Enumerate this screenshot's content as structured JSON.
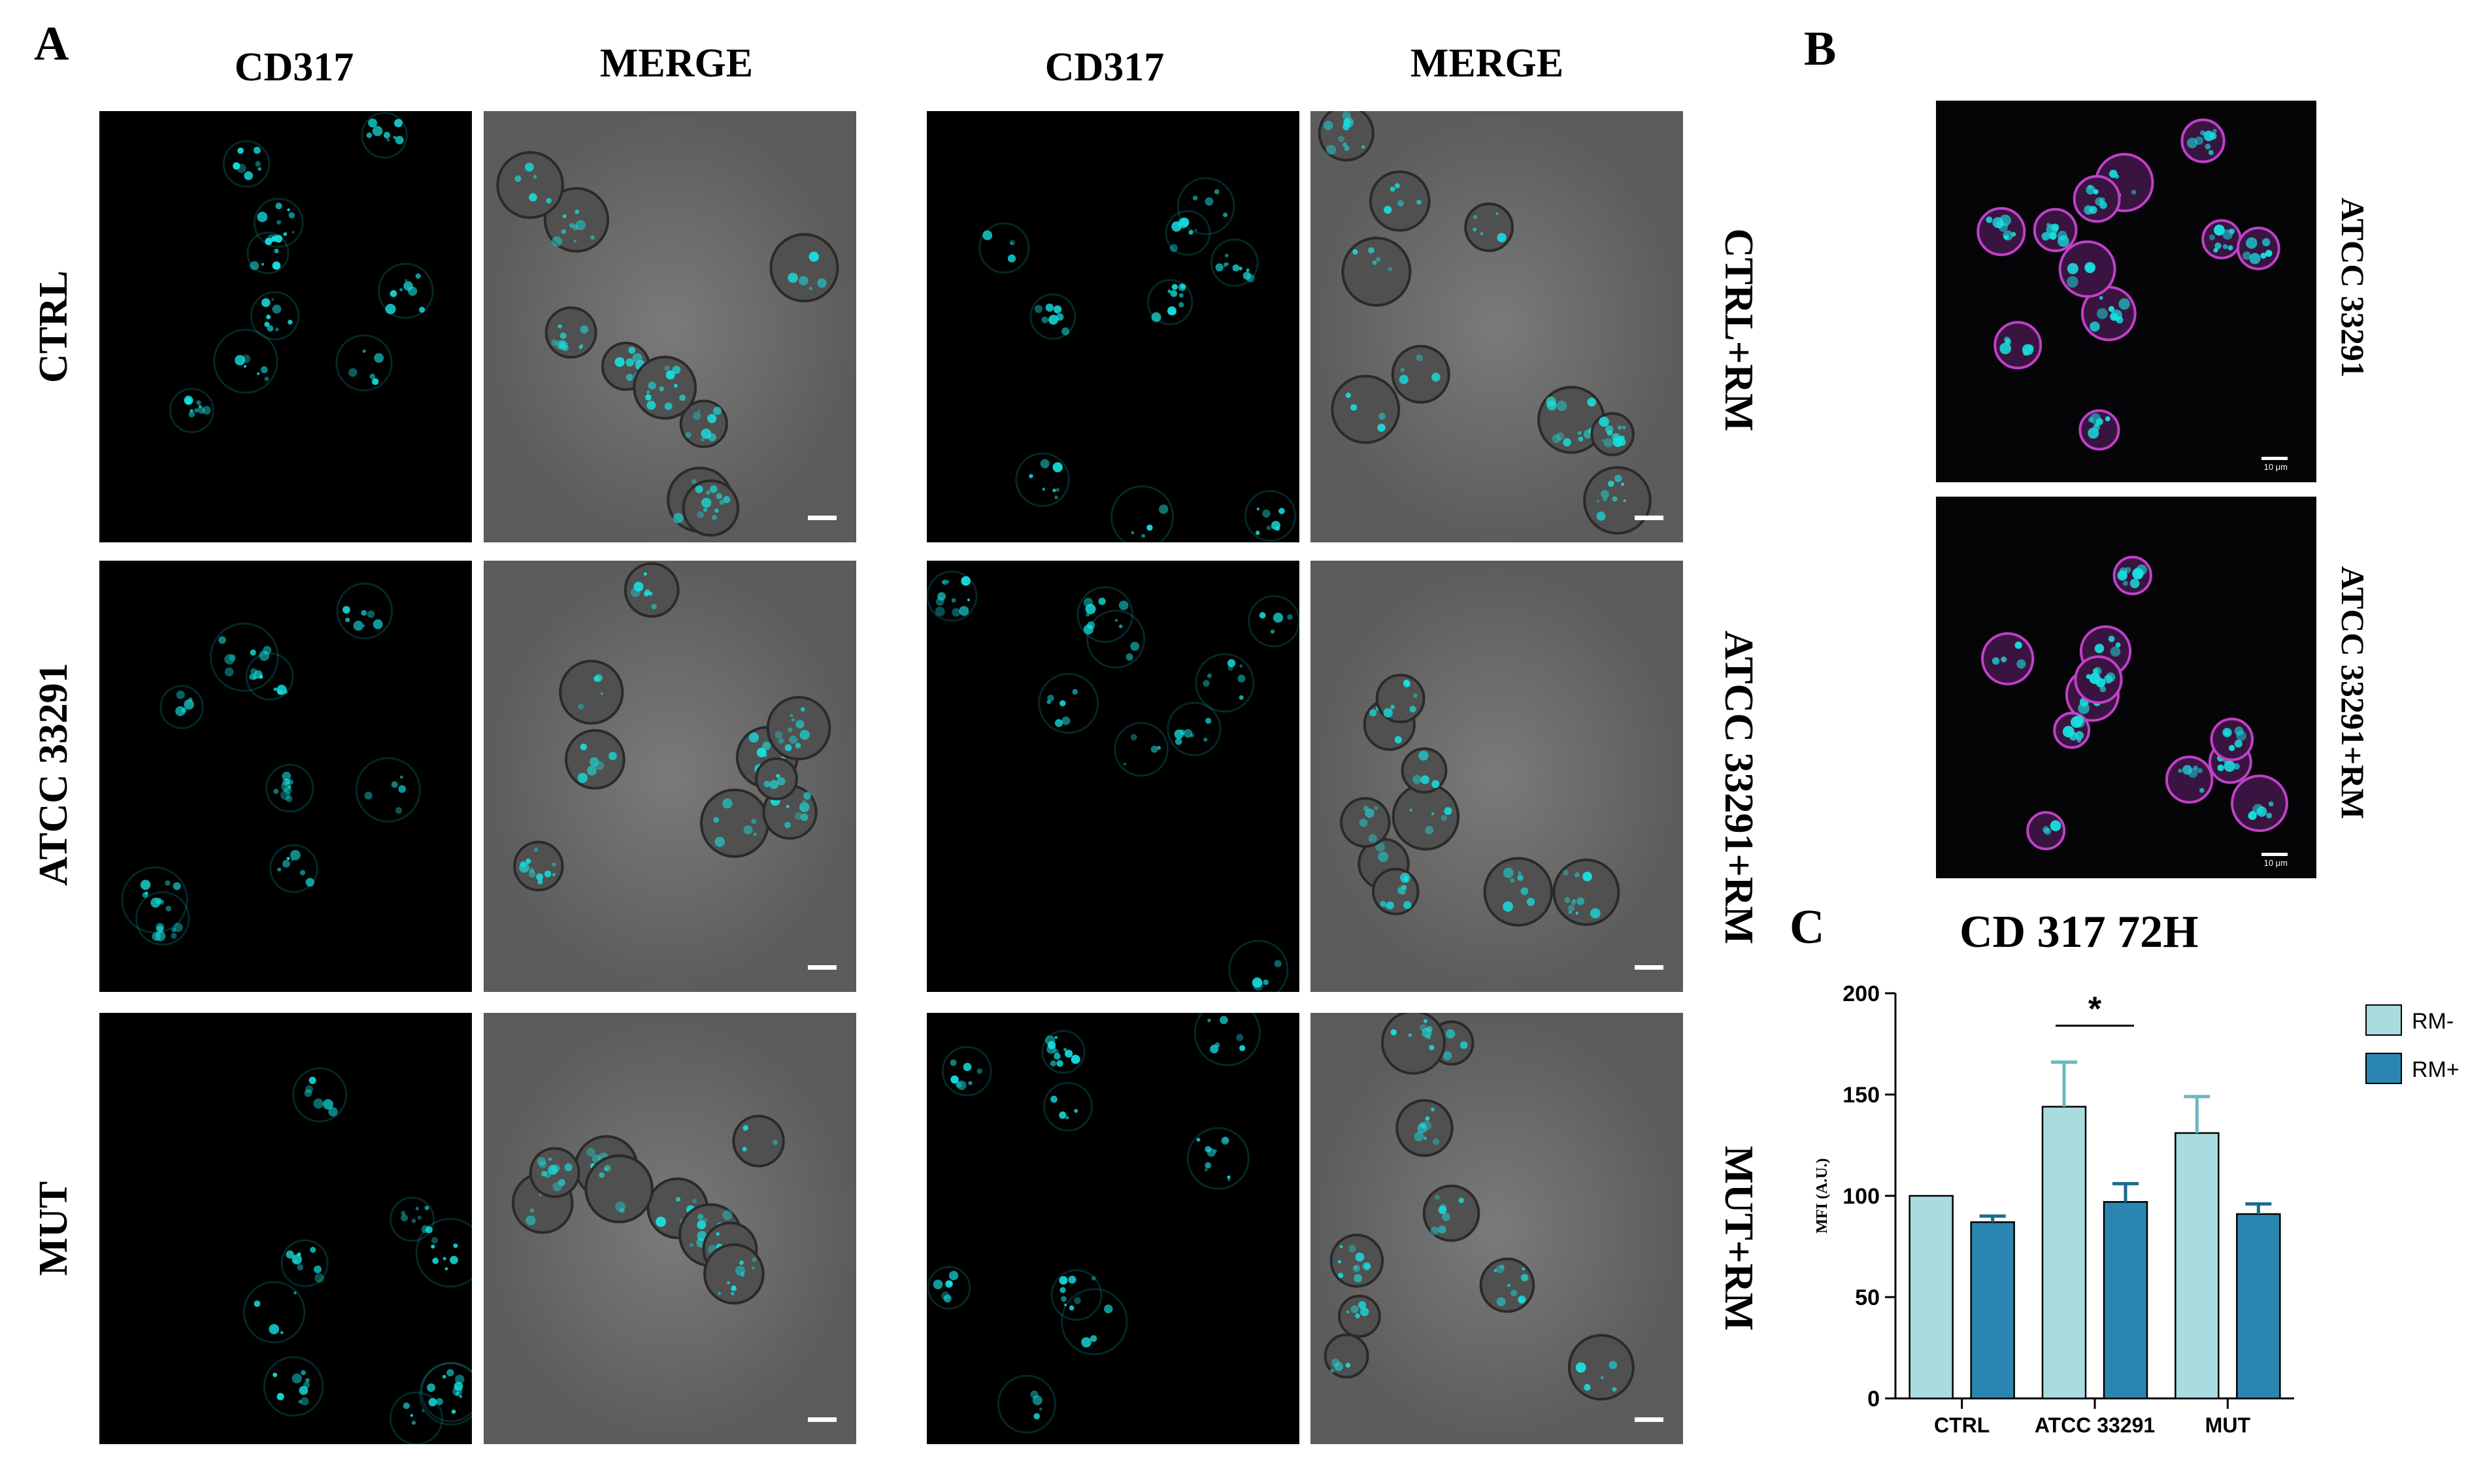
{
  "panel_labels": {
    "A": "A",
    "B": "B",
    "C": "C"
  },
  "panel_a": {
    "left_group": {
      "col1": "CD317",
      "col2": "MERGE"
    },
    "right_group": {
      "col1": "CD317",
      "col2": "MERGE"
    },
    "left_rows": [
      "CTRL",
      "ATCC 33291",
      "MUT"
    ],
    "right_rows": [
      "CTRL+RM",
      "ATCC 33291+RM",
      "MUT+RM"
    ]
  },
  "panel_b": {
    "labels": [
      "ATCC 33291",
      "ATCC 33291+RM"
    ],
    "scale_text": "10 μm"
  },
  "colors": {
    "cyan": "#18e0e0",
    "magenta": "#c040c8",
    "rm_minus": "#a8dcdf",
    "rm_plus": "#2a86b0"
  },
  "chart_data": {
    "type": "bar",
    "title": "CD 317 72H",
    "ylabel": "MFI (A.U.)",
    "xlabel": "",
    "categories": [
      "CTRL",
      "ATCC 33291",
      "MUT"
    ],
    "series": [
      {
        "name": "RM-",
        "values": [
          100,
          144,
          131
        ],
        "errors": [
          0,
          22,
          18
        ],
        "color": "#a8dcdf"
      },
      {
        "name": "RM+",
        "values": [
          87,
          97,
          91
        ],
        "errors": [
          3,
          9,
          5
        ],
        "color": "#2a86b0"
      }
    ],
    "ylim": [
      0,
      200
    ],
    "yticks": [
      "0",
      "50",
      "100",
      "150",
      "200"
    ],
    "annotations": [
      {
        "text": "*",
        "category": "ATCC 33291"
      }
    ],
    "legend": "top-right",
    "grid": false
  }
}
